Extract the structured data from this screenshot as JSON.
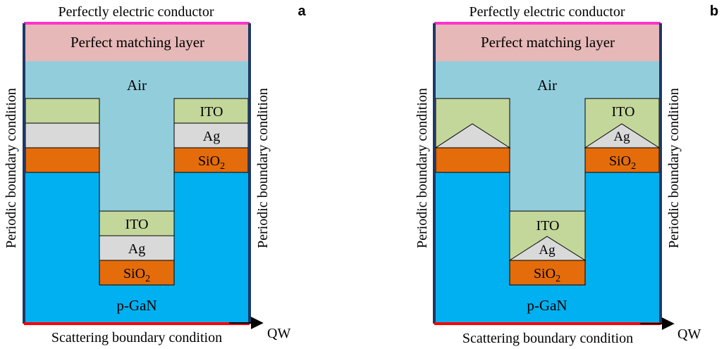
{
  "colors": {
    "pml": "#e6b8b7",
    "air": "#92cddc",
    "ito": "#c4d79b",
    "ag": "#d9d9d9",
    "sio2": "#e46c0a",
    "gan": "#00b0f0",
    "pec_line": "#ff33cc",
    "scatter_line": "#ff0000",
    "side_border": "#1f3864"
  },
  "panels": [
    {
      "letter": "a",
      "top_label": "Perfectly electric conductor",
      "pml_label": "Perfect matching layer",
      "air_label": "Air",
      "left_side_label": "Periodic boundary condition",
      "right_side_label": "Periodic boundary condition",
      "bottom_label": "Scattering boundary condition",
      "substrate_label": "p-GaN",
      "arrow_label": "QW",
      "right_stack": {
        "ito": "ITO",
        "ag": "Ag",
        "sio2_base": "SiO",
        "sio2_sub": "2"
      },
      "center_stack": {
        "ito": "ITO",
        "ag": "Ag",
        "sio2_base": "SiO",
        "sio2_sub": "2"
      }
    },
    {
      "letter": "b",
      "top_label": "Perfectly electric conductor",
      "pml_label": "Perfect matching layer",
      "air_label": "Air",
      "left_side_label": "Periodic boundary condition",
      "right_side_label": "Periodic boundary condition",
      "bottom_label": "Scattering boundary condition",
      "substrate_label": "p-GaN",
      "arrow_label": "QW",
      "right_stack": {
        "ito": "ITO",
        "ag": "Ag",
        "sio2_base": "SiO",
        "sio2_sub": "2"
      },
      "center_stack": {
        "ito": "ITO",
        "ag": "Ag",
        "sio2_base": "SiO",
        "sio2_sub": "2"
      }
    }
  ]
}
